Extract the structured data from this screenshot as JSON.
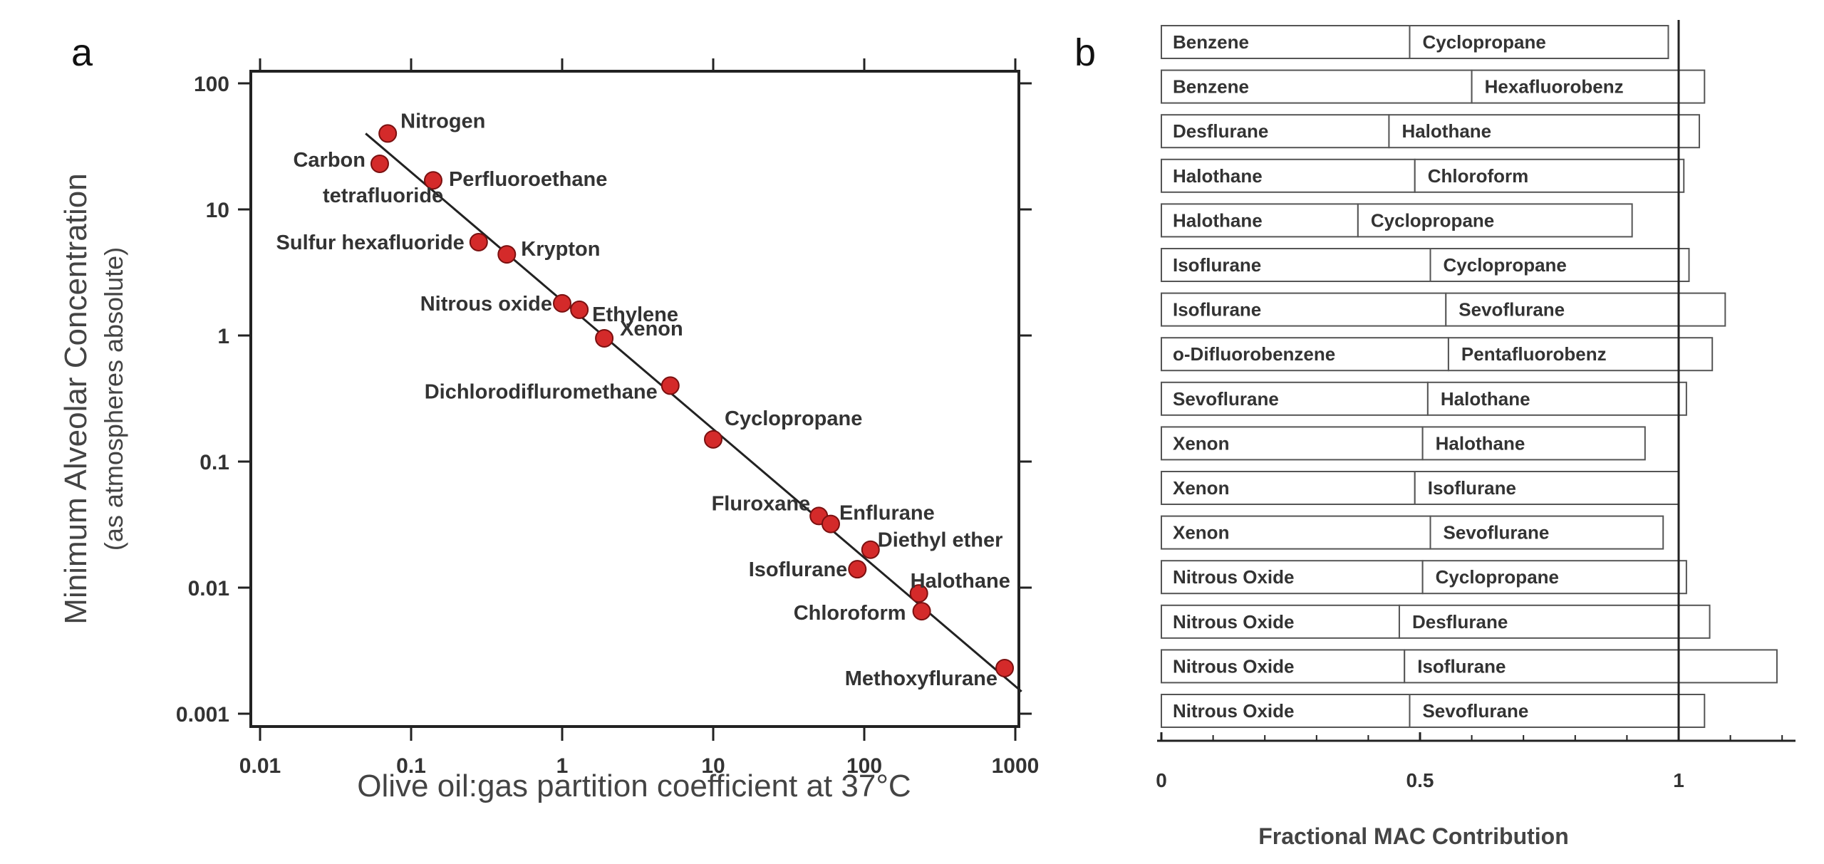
{
  "chart_data": [
    {
      "type": "scatter",
      "panel": "a",
      "xscale": "log",
      "yscale": "log",
      "xlabel": "Olive oil:gas partition coefficient at 37°C",
      "ylabel": "Minimum Alveolar Concentration",
      "ylabel_sub": "(as atmospheres absolute)",
      "xlim": [
        0.01,
        1000
      ],
      "ylim": [
        0.001,
        100
      ],
      "x_ticks": [
        0.01,
        0.1,
        1,
        10,
        100,
        1000
      ],
      "x_tick_labels": [
        "0.01",
        "0.1",
        "1",
        "10",
        "100",
        "1000"
      ],
      "y_ticks": [
        100,
        10,
        1,
        0.1,
        0.01,
        0.001
      ],
      "y_tick_labels": [
        "100",
        "10",
        "1",
        "0.1",
        "0.01",
        "0.001"
      ],
      "point_color": "#d42a2a",
      "points": [
        {
          "name": "Nitrogen",
          "x": 0.07,
          "y": 40
        },
        {
          "name": "Carbon tetrafluoride",
          "x": 0.062,
          "y": 23
        },
        {
          "name": "Perfluoroethane",
          "x": 0.14,
          "y": 17
        },
        {
          "name": "Sulfur hexafluoride",
          "x": 0.28,
          "y": 5.5
        },
        {
          "name": "Krypton",
          "x": 0.43,
          "y": 4.4
        },
        {
          "name": "Nitrous oxide",
          "x": 1.0,
          "y": 1.8
        },
        {
          "name": "Ethylene",
          "x": 1.3,
          "y": 1.6
        },
        {
          "name": "Xenon",
          "x": 1.9,
          "y": 0.95
        },
        {
          "name": "Dichlorodifluromethane",
          "x": 5.2,
          "y": 0.4
        },
        {
          "name": "Cyclopropane",
          "x": 10,
          "y": 0.15
        },
        {
          "name": "Fluroxane",
          "x": 50,
          "y": 0.037
        },
        {
          "name": "Enflurane",
          "x": 60,
          "y": 0.032
        },
        {
          "name": "Diethyl ether",
          "x": 110,
          "y": 0.02
        },
        {
          "name": "Isoflurane",
          "x": 90,
          "y": 0.014
        },
        {
          "name": "Halothane",
          "x": 230,
          "y": 0.009
        },
        {
          "name": "Chloroform",
          "x": 240,
          "y": 0.0065
        },
        {
          "name": "Methoxyflurane",
          "x": 850,
          "y": 0.0023
        }
      ],
      "label_lines": {
        "Carbon tetrafluoride": [
          "Carbon",
          "tetrafluoride"
        ]
      },
      "fit_line": {
        "x": [
          0.05,
          1100
        ],
        "y": [
          40,
          0.0015
        ]
      }
    },
    {
      "type": "bar",
      "panel": "b",
      "orientation": "horizontal",
      "stacked": true,
      "xlabel": "Fractional MAC Contribution",
      "xlim": [
        0,
        1.2
      ],
      "x_ticks": [
        0,
        0.5,
        1
      ],
      "x_tick_labels": [
        "0",
        "0.5",
        "1"
      ],
      "reference_line": 1,
      "rows": [
        {
          "first": "Benzene",
          "first_value": 0.48,
          "second": "Cyclopropane",
          "second_value": 0.5
        },
        {
          "first": "Benzene",
          "first_value": 0.6,
          "second": "Hexafluorobenz",
          "second_value": 0.45
        },
        {
          "first": "Desflurane",
          "first_value": 0.44,
          "second": "Halothane",
          "second_value": 0.6
        },
        {
          "first": "Halothane",
          "first_value": 0.49,
          "second": "Chloroform",
          "second_value": 0.52
        },
        {
          "first": "Halothane",
          "first_value": 0.38,
          "second": "Cyclopropane",
          "second_value": 0.53
        },
        {
          "first": "Isoflurane",
          "first_value": 0.52,
          "second": "Cyclopropane",
          "second_value": 0.5
        },
        {
          "first": "Isoflurane",
          "first_value": 0.55,
          "second": "Sevoflurane",
          "second_value": 0.54
        },
        {
          "first": "o-Difluorobenzene",
          "first_value": 0.555,
          "second": "Pentafluorobenz",
          "second_value": 0.51
        },
        {
          "first": "Sevoflurane",
          "first_value": 0.515,
          "second": "Halothane",
          "second_value": 0.5
        },
        {
          "first": "Xenon",
          "first_value": 0.505,
          "second": "Halothane",
          "second_value": 0.43
        },
        {
          "first": "Xenon",
          "first_value": 0.49,
          "second": "Isoflurane",
          "second_value": 0.51
        },
        {
          "first": "Xenon",
          "first_value": 0.52,
          "second": "Sevoflurane",
          "second_value": 0.45
        },
        {
          "first": "Nitrous Oxide",
          "first_value": 0.505,
          "second": "Cyclopropane",
          "second_value": 0.51
        },
        {
          "first": "Nitrous Oxide",
          "first_value": 0.46,
          "second": "Desflurane",
          "second_value": 0.6
        },
        {
          "first": "Nitrous Oxide",
          "first_value": 0.47,
          "second": "Isoflurane",
          "second_value": 0.72
        },
        {
          "first": "Nitrous Oxide",
          "first_value": 0.48,
          "second": "Sevoflurane",
          "second_value": 0.57
        }
      ]
    }
  ],
  "panels": {
    "a": "a",
    "b": "b"
  }
}
